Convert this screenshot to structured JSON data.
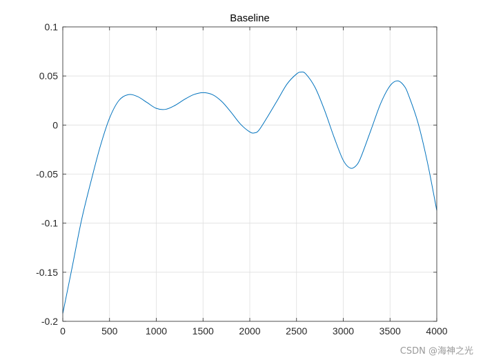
{
  "chart_data": {
    "type": "line",
    "title": "Baseline",
    "xlabel": "",
    "ylabel": "",
    "xlim": [
      0,
      4000
    ],
    "ylim": [
      -0.2,
      0.1
    ],
    "xticks": [
      0,
      500,
      1000,
      1500,
      2000,
      2500,
      3000,
      3500,
      4000
    ],
    "xtick_labels": [
      "0",
      "500",
      "1000",
      "1500",
      "2000",
      "2500",
      "3000",
      "3500",
      "4000"
    ],
    "yticks": [
      -0.2,
      -0.15,
      -0.1,
      -0.05,
      0,
      0.05,
      0.1
    ],
    "ytick_labels": [
      "-0.2",
      "-0.15",
      "-0.1",
      "-0.05",
      "0",
      "0.05",
      "0.1"
    ],
    "grid": true,
    "line_color": "#0072bd",
    "series": [
      {
        "x": [
          0,
          100,
          200,
          300,
          400,
          500,
          600,
          700,
          800,
          900,
          1000,
          1100,
          1200,
          1300,
          1400,
          1500,
          1600,
          1700,
          1800,
          1900,
          2000,
          2050,
          2100,
          2200,
          2300,
          2400,
          2500,
          2550,
          2600,
          2700,
          2800,
          2900,
          3000,
          3080,
          3150,
          3200,
          3300,
          3400,
          3500,
          3580,
          3650,
          3700,
          3800,
          3900,
          4000
        ],
        "y": [
          -0.192,
          -0.145,
          -0.097,
          -0.058,
          -0.022,
          0.007,
          0.025,
          0.031,
          0.029,
          0.023,
          0.017,
          0.016,
          0.02,
          0.026,
          0.031,
          0.033,
          0.031,
          0.024,
          0.013,
          0.001,
          -0.007,
          -0.008,
          -0.005,
          0.01,
          0.026,
          0.042,
          0.052,
          0.054,
          0.052,
          0.038,
          0.015,
          -0.012,
          -0.036,
          -0.044,
          -0.04,
          -0.03,
          -0.004,
          0.022,
          0.04,
          0.045,
          0.04,
          0.03,
          0.002,
          -0.038,
          -0.087
        ]
      }
    ]
  },
  "watermark": "CSDN @海神之光"
}
